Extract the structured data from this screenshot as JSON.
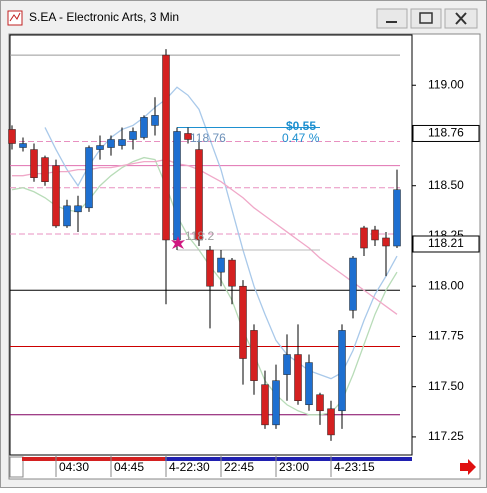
{
  "chart_data": {
    "type": "candlestick",
    "title": "S.EA - Electronic Arts, 3 Min",
    "categories": [
      null,
      null,
      null,
      null,
      "04:30",
      null,
      null,
      null,
      null,
      "04:45",
      null,
      null,
      null,
      null,
      "4-22:30",
      null,
      null,
      null,
      null,
      "22:45",
      null,
      null,
      null,
      null,
      "23:00",
      null,
      null,
      null,
      null,
      "4-23:15",
      null,
      null,
      null,
      null,
      null,
      null
    ],
    "open": [
      118.78,
      118.69,
      118.68,
      118.64,
      118.6,
      118.3,
      118.37,
      118.39,
      118.68,
      118.69,
      118.7,
      118.73,
      118.74,
      118.8,
      119.15,
      118.23,
      118.76,
      118.68,
      118.18,
      118.07,
      118.13,
      118.0,
      117.78,
      117.51,
      117.31,
      117.56,
      117.66,
      117.41,
      117.46,
      117.39,
      117.38,
      117.88,
      118.29,
      118.28,
      118.24,
      118.2
    ],
    "high": [
      118.8,
      118.74,
      118.71,
      118.65,
      118.63,
      118.43,
      118.45,
      118.7,
      118.75,
      118.75,
      118.79,
      118.79,
      118.85,
      118.94,
      119.18,
      118.79,
      118.79,
      118.73,
      118.2,
      118.18,
      118.14,
      118.03,
      117.81,
      117.58,
      117.61,
      117.76,
      117.81,
      117.66,
      117.47,
      117.43,
      117.81,
      118.15,
      118.3,
      118.3,
      118.27,
      118.58
    ],
    "low": [
      118.68,
      118.67,
      118.52,
      118.5,
      118.29,
      118.29,
      118.27,
      118.37,
      118.63,
      118.65,
      118.68,
      118.68,
      118.73,
      118.75,
      117.91,
      118.18,
      118.71,
      118.2,
      117.79,
      118.0,
      117.91,
      117.51,
      117.46,
      117.29,
      117.29,
      117.43,
      117.41,
      117.38,
      117.31,
      117.23,
      117.29,
      117.84,
      118.15,
      118.2,
      118.05,
      118.19
    ],
    "close": [
      118.71,
      118.71,
      118.54,
      118.52,
      118.3,
      118.4,
      118.4,
      118.69,
      118.7,
      118.73,
      118.73,
      118.77,
      118.84,
      118.85,
      118.23,
      118.77,
      118.73,
      118.23,
      118.0,
      118.14,
      118.0,
      117.64,
      117.53,
      117.31,
      117.53,
      117.66,
      117.43,
      117.62,
      117.38,
      117.26,
      117.78,
      118.14,
      118.19,
      118.23,
      118.2,
      118.48
    ],
    "up_color": "#1e6fd0",
    "down_color": "#d42020",
    "overlays": [
      {
        "color": "#a9c9ea",
        "values": [
          null,
          null,
          null,
          118.79,
          118.68,
          118.58,
          118.5,
          118.6,
          118.68,
          118.74,
          118.78,
          118.8,
          118.84,
          118.89,
          118.93,
          118.99,
          118.95,
          118.88,
          118.73,
          118.58,
          118.38,
          118.18,
          118.0,
          117.86,
          117.73,
          117.66,
          117.62,
          117.58,
          117.56,
          117.54,
          117.57,
          117.68,
          117.83,
          117.96,
          118.05,
          118.15
        ]
      },
      {
        "color": "#b8dcb8",
        "values": [
          118.48,
          118.49,
          118.47,
          118.44,
          118.4,
          118.38,
          118.37,
          118.43,
          118.5,
          118.55,
          118.59,
          118.62,
          118.64,
          118.63,
          118.5,
          118.35,
          118.25,
          118.18,
          118.1,
          118.03,
          117.93,
          117.78,
          117.66,
          117.53,
          117.46,
          117.41,
          117.38,
          117.36,
          117.36,
          117.37,
          117.43,
          117.56,
          117.71,
          117.86,
          117.98,
          118.07
        ]
      },
      {
        "color": "#f0a8c8",
        "values": [
          118.55,
          118.55,
          118.56,
          118.56,
          118.57,
          118.57,
          118.58,
          118.58,
          118.59,
          118.59,
          118.6,
          118.61,
          118.62,
          118.62,
          118.63,
          118.61,
          118.6,
          118.58,
          118.55,
          118.52,
          118.48,
          118.44,
          118.39,
          118.35,
          118.31,
          118.27,
          118.23,
          118.19,
          118.14,
          118.1,
          118.06,
          118.02,
          117.98,
          117.94,
          117.9,
          117.86
        ]
      }
    ],
    "levels": [
      {
        "value": 119.15,
        "color": "#999999",
        "dash": false
      },
      {
        "value": 118.72,
        "color": "#e890c0",
        "dash": true
      },
      {
        "value": 118.6,
        "color": "#e070b0",
        "dash": false
      },
      {
        "value": 118.49,
        "color": "#e890c0",
        "dash": true
      },
      {
        "value": 118.26,
        "color": "#e890c0",
        "dash": true
      },
      {
        "value": 117.98,
        "color": "#000000",
        "dash": false
      },
      {
        "value": 117.7,
        "color": "#cc0000",
        "dash": false
      },
      {
        "value": 117.36,
        "color": "#800060",
        "dash": false
      }
    ],
    "annotations": {
      "change": "$0.55",
      "change_pct": "0.47 %",
      "high_label": "118.76",
      "low_label": "118.2"
    },
    "price_labels": [
      118.76,
      118.21
    ],
    "ylim": [
      117.16,
      119.25
    ],
    "yticks": [
      {
        "value": 117.25,
        "label": "117.25"
      },
      {
        "value": 117.5,
        "label": "117.50"
      },
      {
        "value": 117.75,
        "label": "117.75"
      },
      {
        "value": 118,
        "label": "118.00"
      },
      {
        "value": 118.25,
        "label": "118.25"
      },
      {
        "value": 118.5,
        "label": "118.50"
      },
      {
        "value": 118.75,
        "label": "118.75"
      },
      {
        "value": 119,
        "label": "119.00"
      }
    ]
  }
}
